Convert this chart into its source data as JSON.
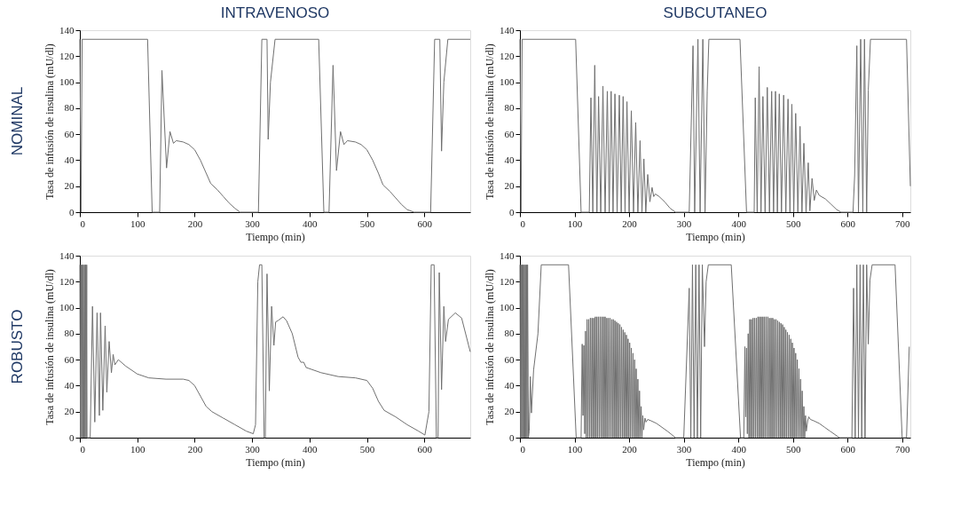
{
  "chart_data": [
    {
      "type": "line",
      "title": "INTRAVENOSO",
      "annotations": [
        "NOMINAL"
      ],
      "xlabel": "Tiempo (min)",
      "ylabel": "Tasa de infusión de insulina (mU/dl)",
      "xlim": [
        0,
        680
      ],
      "xticks": [
        0,
        100,
        200,
        300,
        400,
        500,
        600
      ],
      "ylim": [
        0,
        140
      ],
      "yticks": [
        0,
        20,
        40,
        60,
        80,
        100,
        120,
        140
      ],
      "grid": false,
      "line_style": "solid",
      "marker": "none",
      "series": [
        {
          "color": "#707070",
          "x": [
            0,
            2,
            4,
            118,
            126,
            139,
            143,
            151,
            157,
            163,
            168,
            180,
            190,
            200,
            210,
            220,
            228,
            240,
            250,
            260,
            270,
            279,
            311,
            317,
            326,
            328,
            332,
            340,
            416,
            425,
            434,
            441,
            447,
            454,
            460,
            466,
            480,
            490,
            500,
            510,
            520,
            528,
            540,
            550,
            560,
            570,
            582,
            611,
            618,
            627,
            630,
            634,
            641,
            680
          ],
          "values": [
            133,
            0,
            133,
            133,
            0,
            0,
            109,
            34,
            62,
            53,
            55,
            54,
            52,
            48,
            40,
            30,
            22,
            17,
            12,
            7,
            3,
            0,
            0,
            133,
            133,
            56,
            100,
            133,
            133,
            0,
            0,
            113,
            32,
            62,
            52,
            55,
            54,
            52,
            48,
            40,
            30,
            21,
            16,
            11,
            6,
            2,
            0,
            0,
            133,
            133,
            47,
            100,
            133,
            133
          ]
        }
      ]
    },
    {
      "type": "line",
      "title": "SUBCUTANEO",
      "xlabel": "Tiempo (min)",
      "ylabel": "Tasa de infusión de insulina (mU/dl)",
      "xlim": [
        0,
        715
      ],
      "xticks": [
        0,
        100,
        200,
        300,
        400,
        500,
        600,
        700
      ],
      "ylim": [
        0,
        140
      ],
      "yticks": [
        0,
        20,
        40,
        60,
        80,
        100,
        120,
        140
      ],
      "grid": false,
      "line_style": "solid",
      "marker": "none",
      "series": [
        {
          "color": "#707070",
          "x": [
            0,
            2,
            4,
            102,
            112,
            127,
            130,
            133.5,
            137,
            141,
            144,
            148,
            152,
            156,
            160,
            163.5,
            167,
            170.5,
            174,
            178,
            182,
            185.5,
            189,
            192.5,
            196,
            200,
            204,
            208,
            212,
            216,
            220,
            223.5,
            227,
            230.5,
            234,
            238,
            242,
            245,
            248,
            255,
            265,
            275,
            285,
            310,
            317,
            320,
            326,
            330,
            335,
            339,
            343,
            346,
            403,
            415,
            429,
            431,
            434.5,
            438,
            441.5,
            445,
            449,
            453,
            457,
            461,
            464.5,
            468,
            471.5,
            475,
            479,
            483,
            487,
            491,
            494.5,
            498,
            501.5,
            505,
            509,
            513,
            516.5,
            520,
            524,
            528,
            531,
            535,
            539,
            543,
            548,
            560,
            570,
            580,
            588,
            610,
            613,
            617,
            620,
            624,
            628,
            631,
            635,
            638,
            642,
            708,
            715
          ],
          "values": [
            133,
            0,
            133,
            133,
            0,
            0,
            88,
            0,
            113,
            0,
            89,
            0,
            97,
            0,
            93,
            0,
            93,
            0,
            91,
            0,
            90,
            0,
            89,
            0,
            85,
            0,
            78,
            0,
            69,
            0,
            55,
            0,
            41,
            0,
            29,
            8,
            19,
            12,
            14,
            12,
            8,
            3,
            0,
            0,
            128,
            0,
            133,
            0,
            133,
            0,
            93,
            133,
            133,
            0,
            0,
            88,
            0,
            112,
            0,
            89,
            0,
            96,
            0,
            93,
            0,
            93,
            0,
            91,
            0,
            90,
            0,
            87,
            0,
            83,
            0,
            76,
            0,
            66,
            0,
            53,
            0,
            38,
            1,
            26,
            9,
            17,
            13,
            10,
            6,
            2,
            0,
            0,
            28,
            128,
            0,
            133,
            0,
            133,
            0,
            94,
            133,
            133,
            20
          ]
        }
      ]
    },
    {
      "type": "line",
      "annotations": [
        "ROBUSTO"
      ],
      "xlabel": "Tiempo (min)",
      "ylabel": "Tasa de infusión de insulina (mU/dl)",
      "xlim": [
        0,
        680
      ],
      "xticks": [
        0,
        100,
        200,
        300,
        400,
        500,
        600
      ],
      "ylim": [
        0,
        140
      ],
      "yticks": [
        0,
        20,
        40,
        60,
        80,
        100,
        120,
        140
      ],
      "grid": false,
      "line_style": "solid",
      "marker": "none",
      "series": [
        {
          "color": "#707070",
          "x": [
            0,
            1,
            2,
            3,
            4,
            5,
            6,
            7,
            8,
            9,
            10,
            11,
            12,
            12.5,
            18,
            22,
            26,
            30,
            34,
            36,
            40,
            44,
            47,
            51,
            55,
            58,
            61,
            67,
            80,
            100,
            120,
            150,
            180,
            190,
            200,
            210,
            220,
            230,
            250,
            270,
            290,
            302,
            306,
            310,
            313,
            317,
            321,
            323,
            326,
            330,
            334,
            338,
            341,
            345,
            354,
            360,
            370,
            380,
            385,
            390,
            394,
            420,
            450,
            480,
            500,
            510,
            520,
            530,
            550,
            570,
            590,
            601,
            608,
            612,
            617,
            621,
            624,
            626,
            630,
            634,
            637,
            642,
            654,
            665,
            680
          ],
          "values": [
            133,
            0,
            133,
            0,
            133,
            0,
            133,
            0,
            133,
            0,
            133,
            0,
            133,
            0,
            0,
            101,
            12,
            96,
            17,
            96,
            21,
            86,
            35,
            74,
            50,
            64,
            56,
            60,
            55,
            49,
            46,
            45,
            45,
            44,
            40,
            32,
            24,
            20,
            15,
            10,
            5,
            3,
            10,
            120,
            133,
            133,
            0,
            0,
            126,
            36,
            101,
            71,
            89,
            90,
            93,
            90,
            80,
            62,
            58,
            58,
            54,
            50,
            47,
            46,
            44,
            38,
            28,
            21,
            16,
            10,
            5,
            2,
            20,
            133,
            133,
            0,
            0,
            127,
            37,
            101,
            74,
            91,
            96,
            92,
            66
          ]
        }
      ]
    },
    {
      "type": "line",
      "xlabel": "Tiempo (min)",
      "ylabel": "Tasa de infusión de insulina (mU/dl)",
      "xlim": [
        0,
        715
      ],
      "xticks": [
        0,
        100,
        200,
        300,
        400,
        500,
        600,
        700
      ],
      "ylim": [
        0,
        140
      ],
      "yticks": [
        0,
        20,
        40,
        60,
        80,
        100,
        120,
        140
      ],
      "grid": false,
      "line_style": "solid",
      "marker": "none",
      "series": [
        {
          "color": "#707070",
          "x": [
            0,
            1,
            2,
            3,
            4,
            5,
            6,
            7,
            8,
            9,
            10,
            11,
            12,
            13,
            14,
            15.5,
            17,
            19,
            21,
            25,
            33,
            39,
            89,
            103,
            112,
            114,
            115.5,
            117,
            118.5,
            120,
            121.5,
            123,
            124.5,
            126,
            127.5,
            129,
            130.5,
            132,
            133.5,
            135,
            136.5,
            138,
            139.5,
            141,
            142.5,
            144,
            145.5,
            147,
            148.5,
            150,
            151.5,
            153,
            154.5,
            156,
            157.5,
            159,
            160.5,
            162,
            163.5,
            165,
            166.5,
            168,
            169.5,
            171,
            172.5,
            174,
            175.5,
            177,
            178.5,
            180,
            181.5,
            183,
            184.5,
            186,
            187.5,
            189,
            190.5,
            192,
            193.5,
            195,
            196.5,
            198,
            199.5,
            201,
            202.5,
            204,
            205.5,
            207,
            208.5,
            210,
            211.5,
            213,
            214.5,
            216,
            217.5,
            219,
            220.5,
            222,
            223.5,
            225,
            226.5,
            229,
            231,
            234,
            240,
            250,
            260,
            270,
            285,
            300,
            310,
            313,
            316,
            319,
            322,
            325,
            328,
            331,
            334,
            338,
            341,
            345,
            387,
            404,
            410,
            412,
            413.5,
            415,
            416.5,
            418,
            419.5,
            421,
            422.5,
            424,
            425.5,
            427,
            428.5,
            430,
            431.5,
            433,
            434.5,
            436,
            437.5,
            439,
            440.5,
            442,
            443.5,
            445,
            446.5,
            448,
            449.5,
            451,
            452.5,
            454,
            455.5,
            457,
            458.5,
            460,
            461.5,
            463,
            464.5,
            466,
            467.5,
            469,
            470.5,
            472,
            473.5,
            475,
            476.5,
            478,
            479.5,
            481,
            482.5,
            484,
            485.5,
            487,
            488.5,
            490,
            491.5,
            493,
            494.5,
            496,
            497.5,
            499,
            500.5,
            502,
            503.5,
            505,
            506.5,
            508,
            509.5,
            511,
            512.5,
            514,
            515.5,
            517,
            518.5,
            520,
            521.5,
            523,
            524.5,
            527,
            529,
            532,
            538,
            548,
            558,
            568,
            585,
            608,
            611,
            614,
            617,
            620,
            623,
            626,
            629,
            632,
            635,
            638,
            641,
            645,
            687,
            700,
            708,
            713
          ],
          "values": [
            133,
            0,
            133,
            0,
            133,
            0,
            133,
            0,
            133,
            0,
            133,
            0,
            133,
            0,
            133,
            0,
            5,
            47,
            19,
            52,
            80,
            133,
            133,
            0,
            0,
            72,
            17,
            71,
            3,
            82,
            0,
            91,
            0,
            91,
            0,
            92,
            0,
            92,
            0,
            92,
            0,
            93,
            0,
            93,
            0,
            93,
            0,
            93,
            0,
            93,
            0,
            93,
            0,
            93,
            0,
            92,
            0,
            92,
            0,
            92,
            0,
            91,
            0,
            91,
            0,
            90,
            0,
            89,
            0,
            88,
            0,
            87,
            0,
            85,
            0,
            83,
            0,
            81,
            0,
            79,
            0,
            76,
            0,
            73,
            0,
            69,
            0,
            65,
            0,
            60,
            0,
            53,
            0,
            45,
            0,
            36,
            0,
            24,
            0,
            17,
            6,
            15,
            12,
            14,
            13,
            11,
            8,
            5,
            0,
            0,
            115,
            0,
            133,
            0,
            133,
            0,
            133,
            0,
            133,
            70,
            120,
            133,
            133,
            0,
            0,
            70,
            16,
            69,
            3,
            80,
            0,
            91,
            0,
            91,
            0,
            92,
            0,
            92,
            0,
            92,
            0,
            93,
            0,
            93,
            0,
            93,
            0,
            93,
            0,
            93,
            0,
            93,
            0,
            93,
            0,
            92,
            0,
            92,
            0,
            92,
            0,
            91,
            0,
            91,
            0,
            90,
            0,
            89,
            0,
            88,
            0,
            87,
            0,
            85,
            0,
            83,
            0,
            81,
            0,
            79,
            0,
            76,
            0,
            73,
            0,
            69,
            0,
            65,
            0,
            60,
            0,
            53,
            0,
            45,
            0,
            36,
            0,
            24,
            0,
            17,
            5,
            13,
            16,
            14,
            13,
            11,
            8,
            5,
            0,
            0,
            115,
            0,
            133,
            0,
            133,
            0,
            133,
            0,
            133,
            72,
            121,
            133,
            133,
            0,
            0,
            70
          ]
        }
      ]
    }
  ]
}
